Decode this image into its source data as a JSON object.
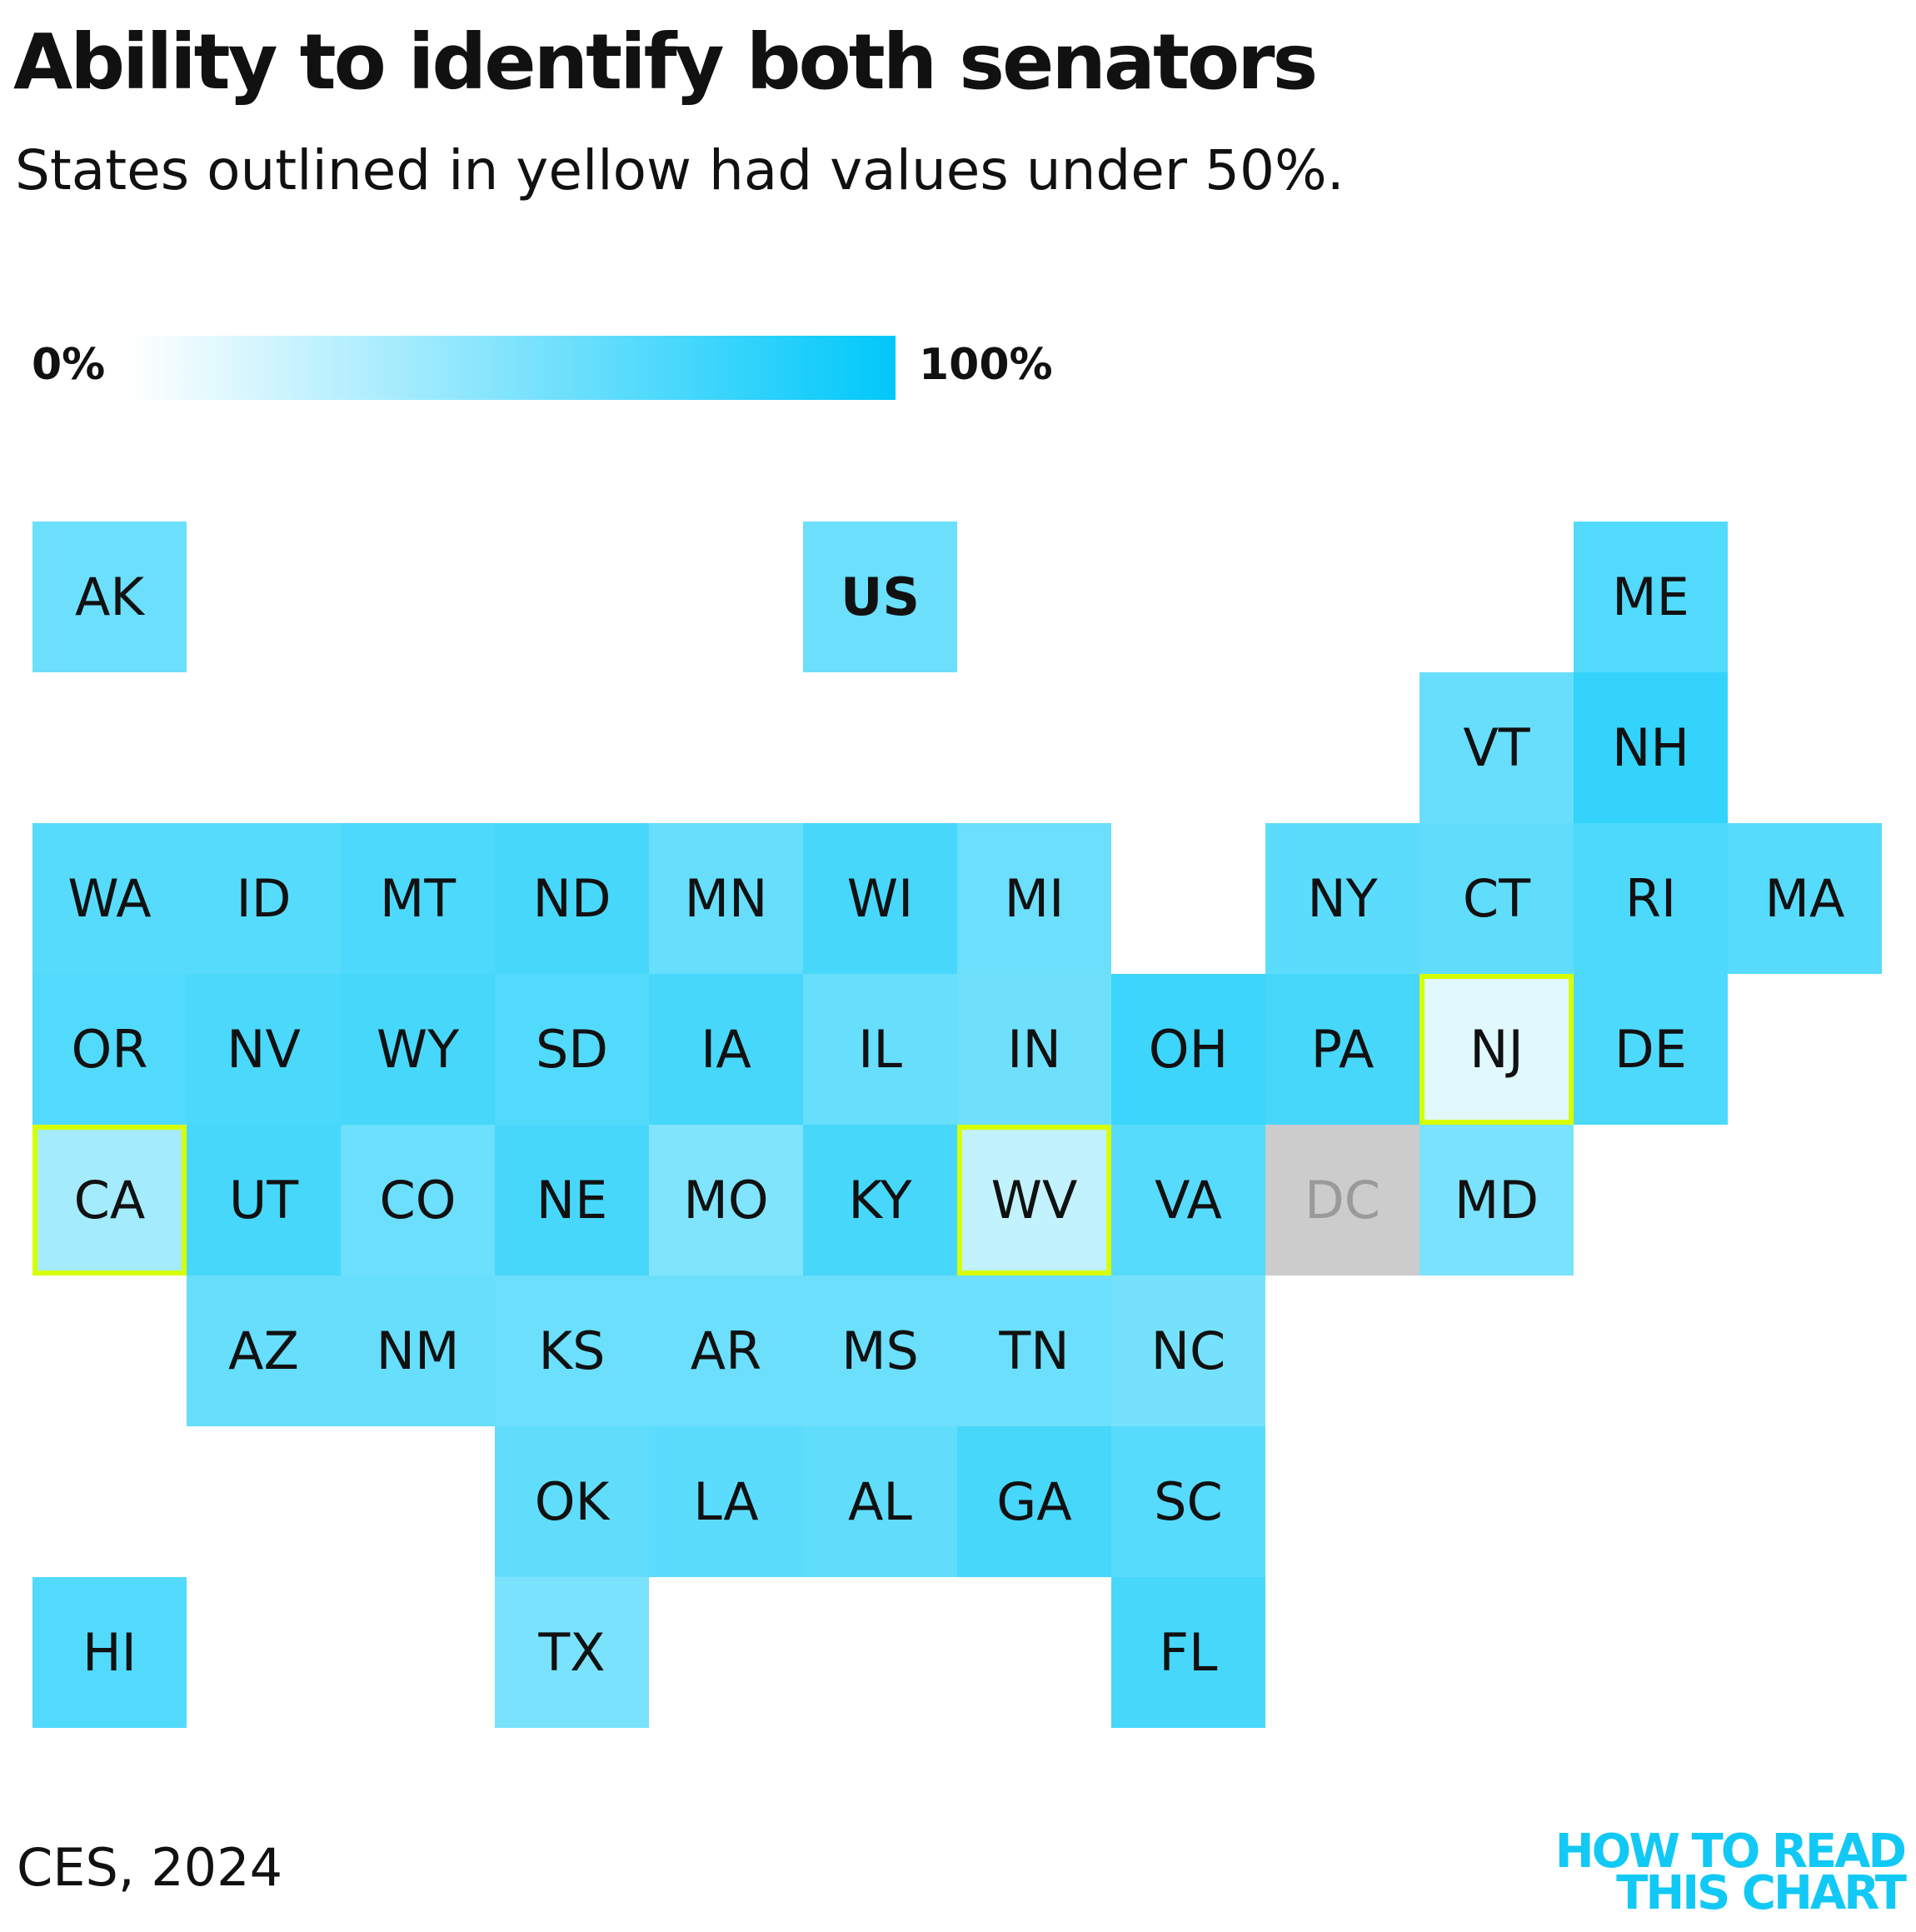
{
  "title": {
    "part1": "Ability to identify ",
    "part2": "both senators"
  },
  "subtitle": "States outlined in yellow had values under 50%.",
  "legend": {
    "min_label": "0%",
    "max_label": "100%",
    "color_min": "#ffffff",
    "color_max": "#00c8fa"
  },
  "source": "CES, 2024",
  "logo": {
    "line1": "HOW TO READ",
    "line2": "THIS CHART"
  },
  "colors": {
    "outline": "#d7ff00",
    "no_data": "#cccccc"
  },
  "chart_data": {
    "type": "tile-map",
    "title": "Ability to identify both senators",
    "subtitle": "States outlined in yellow had values under 50%.",
    "scale": {
      "min": 0,
      "max": 100,
      "unit": "%"
    },
    "threshold_note": "outlined if value < 50",
    "tiles": [
      {
        "id": "AK",
        "row": 0,
        "col": 0,
        "value": 58
      },
      {
        "id": "US",
        "row": 0,
        "col": 5,
        "value": 58
      },
      {
        "id": "ME",
        "row": 0,
        "col": 10,
        "value": 68
      },
      {
        "id": "VT",
        "row": 1,
        "col": 9,
        "value": 60
      },
      {
        "id": "NH",
        "row": 1,
        "col": 10,
        "value": 80
      },
      {
        "id": "WA",
        "row": 2,
        "col": 0,
        "value": 66
      },
      {
        "id": "ID",
        "row": 2,
        "col": 1,
        "value": 66
      },
      {
        "id": "MT",
        "row": 2,
        "col": 2,
        "value": 70
      },
      {
        "id": "ND",
        "row": 2,
        "col": 3,
        "value": 72
      },
      {
        "id": "MN",
        "row": 2,
        "col": 4,
        "value": 60
      },
      {
        "id": "WI",
        "row": 2,
        "col": 5,
        "value": 72
      },
      {
        "id": "MI",
        "row": 2,
        "col": 6,
        "value": 58
      },
      {
        "id": "NY",
        "row": 2,
        "col": 8,
        "value": 64
      },
      {
        "id": "CT",
        "row": 2,
        "col": 9,
        "value": 62
      },
      {
        "id": "RI",
        "row": 2,
        "col": 10,
        "value": 70
      },
      {
        "id": "MA",
        "row": 2,
        "col": 11,
        "value": 66
      },
      {
        "id": "OR",
        "row": 3,
        "col": 0,
        "value": 68
      },
      {
        "id": "NV",
        "row": 3,
        "col": 1,
        "value": 71
      },
      {
        "id": "WY",
        "row": 3,
        "col": 2,
        "value": 72
      },
      {
        "id": "SD",
        "row": 3,
        "col": 3,
        "value": 68
      },
      {
        "id": "IA",
        "row": 3,
        "col": 4,
        "value": 72
      },
      {
        "id": "IL",
        "row": 3,
        "col": 5,
        "value": 60
      },
      {
        "id": "IN",
        "row": 3,
        "col": 6,
        "value": 57
      },
      {
        "id": "OH",
        "row": 3,
        "col": 7,
        "value": 76
      },
      {
        "id": "PA",
        "row": 3,
        "col": 8,
        "value": 72
      },
      {
        "id": "NJ",
        "row": 3,
        "col": 9,
        "value": 12,
        "outlined": true
      },
      {
        "id": "DE",
        "row": 3,
        "col": 10,
        "value": 70
      },
      {
        "id": "CA",
        "row": 4,
        "col": 0,
        "value": 36,
        "outlined": true
      },
      {
        "id": "UT",
        "row": 4,
        "col": 1,
        "value": 72
      },
      {
        "id": "CO",
        "row": 4,
        "col": 2,
        "value": 58
      },
      {
        "id": "NE",
        "row": 4,
        "col": 3,
        "value": 72
      },
      {
        "id": "MO",
        "row": 4,
        "col": 4,
        "value": 50
      },
      {
        "id": "KY",
        "row": 4,
        "col": 5,
        "value": 72
      },
      {
        "id": "WV",
        "row": 4,
        "col": 6,
        "value": 24,
        "outlined": true
      },
      {
        "id": "VA",
        "row": 4,
        "col": 7,
        "value": 66
      },
      {
        "id": "DC",
        "row": 4,
        "col": 8,
        "value": null
      },
      {
        "id": "MD",
        "row": 4,
        "col": 9,
        "value": 52
      },
      {
        "id": "AZ",
        "row": 5,
        "col": 1,
        "value": 60
      },
      {
        "id": "NM",
        "row": 5,
        "col": 2,
        "value": 60
      },
      {
        "id": "KS",
        "row": 5,
        "col": 3,
        "value": 58
      },
      {
        "id": "AR",
        "row": 5,
        "col": 4,
        "value": 58
      },
      {
        "id": "MS",
        "row": 5,
        "col": 5,
        "value": 58
      },
      {
        "id": "TN",
        "row": 5,
        "col": 6,
        "value": 58
      },
      {
        "id": "NC",
        "row": 5,
        "col": 7,
        "value": 54
      },
      {
        "id": "OK",
        "row": 6,
        "col": 3,
        "value": 62
      },
      {
        "id": "LA",
        "row": 6,
        "col": 4,
        "value": 64
      },
      {
        "id": "AL",
        "row": 6,
        "col": 5,
        "value": 62
      },
      {
        "id": "GA",
        "row": 6,
        "col": 6,
        "value": 72
      },
      {
        "id": "SC",
        "row": 6,
        "col": 7,
        "value": 66
      },
      {
        "id": "HI",
        "row": 7,
        "col": 0,
        "value": 68
      },
      {
        "id": "TX",
        "row": 7,
        "col": 3,
        "value": 52
      },
      {
        "id": "FL",
        "row": 7,
        "col": 7,
        "value": 72
      }
    ]
  }
}
